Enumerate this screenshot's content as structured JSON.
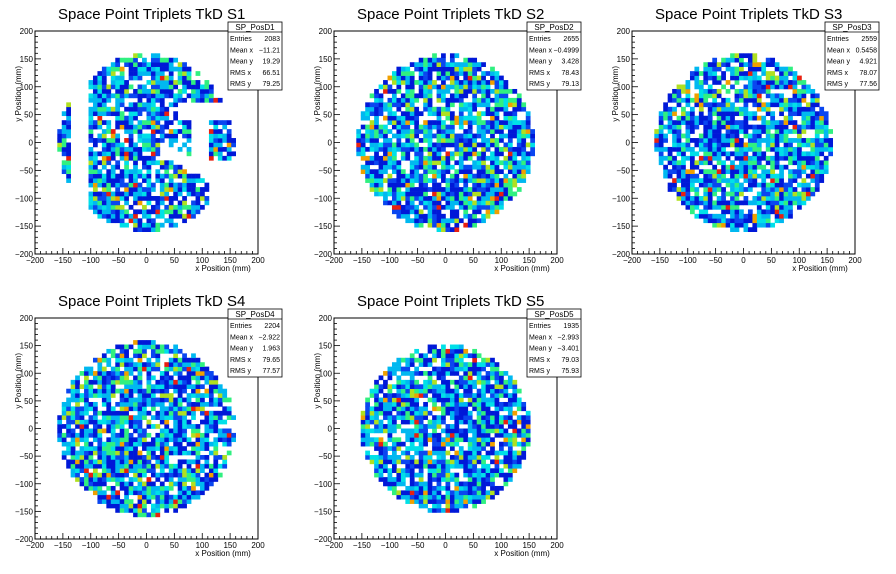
{
  "chart_data": [
    {
      "type": "heatmap",
      "title": "Space Point Triplets TkD S1",
      "xlabel": "x Position (mm)",
      "ylabel": "y Position (mm)",
      "xlim": [
        -200,
        200
      ],
      "ylim": [
        -200,
        200
      ],
      "xticks": [
        "−200",
        "−150",
        "−100",
        "−50",
        "0",
        "50",
        "100",
        "150",
        "200"
      ],
      "yticks": [
        "−200",
        "−150",
        "−100",
        "−50",
        "0",
        "50",
        "100",
        "150",
        "200"
      ],
      "grid": false,
      "pattern": "gapped",
      "stats": {
        "name": "SP_PosD1",
        "rows": [
          {
            "label": "Entries",
            "value": "2083"
          },
          {
            "label": "Mean x",
            "value": "−11.21"
          },
          {
            "label": "Mean y",
            "value": "19.29"
          },
          {
            "label": "RMS x",
            "value": "66.51"
          },
          {
            "label": "RMS y",
            "value": "79.25"
          }
        ]
      }
    },
    {
      "type": "heatmap",
      "title": "Space Point Triplets TkD S2",
      "xlabel": "x Position (mm)",
      "ylabel": "y Position (mm)",
      "xlim": [
        -200,
        200
      ],
      "ylim": [
        -200,
        200
      ],
      "xticks": [
        "−200",
        "−150",
        "−100",
        "−50",
        "0",
        "50",
        "100",
        "150",
        "200"
      ],
      "yticks": [
        "−200",
        "−150",
        "−100",
        "−50",
        "0",
        "50",
        "100",
        "150",
        "200"
      ],
      "grid": false,
      "pattern": "full",
      "stats": {
        "name": "SP_PosD2",
        "rows": [
          {
            "label": "Entries",
            "value": "2655"
          },
          {
            "label": "Mean x",
            "value": "−0.4999"
          },
          {
            "label": "Mean y",
            "value": "3.428"
          },
          {
            "label": "RMS x",
            "value": "78.43"
          },
          {
            "label": "RMS y",
            "value": "79.13"
          }
        ]
      }
    },
    {
      "type": "heatmap",
      "title": "Space Point Triplets TkD S3",
      "xlabel": "x Position (mm)",
      "ylabel": "y Position (mm)",
      "xlim": [
        -200,
        200
      ],
      "ylim": [
        -200,
        200
      ],
      "xticks": [
        "−200",
        "−150",
        "−100",
        "−50",
        "0",
        "50",
        "100",
        "150",
        "200"
      ],
      "yticks": [
        "−200",
        "−150",
        "−100",
        "−50",
        "0",
        "50",
        "100",
        "150",
        "200"
      ],
      "grid": false,
      "pattern": "full",
      "stats": {
        "name": "SP_PosD3",
        "rows": [
          {
            "label": "Entries",
            "value": "2559"
          },
          {
            "label": "Mean x",
            "value": "0.5458"
          },
          {
            "label": "Mean y",
            "value": "4.921"
          },
          {
            "label": "RMS x",
            "value": "78.07"
          },
          {
            "label": "RMS y",
            "value": "77.56"
          }
        ]
      }
    },
    {
      "type": "heatmap",
      "title": "Space Point Triplets TkD S4",
      "xlabel": "x Position (mm)",
      "ylabel": "y Position (mm)",
      "xlim": [
        -200,
        200
      ],
      "ylim": [
        -200,
        200
      ],
      "xticks": [
        "−200",
        "−150",
        "−100",
        "−50",
        "0",
        "50",
        "100",
        "150",
        "200"
      ],
      "yticks": [
        "−200",
        "−150",
        "−100",
        "−50",
        "0",
        "50",
        "100",
        "150",
        "200"
      ],
      "grid": false,
      "pattern": "full",
      "stats": {
        "name": "SP_PosD4",
        "rows": [
          {
            "label": "Entries",
            "value": "2204"
          },
          {
            "label": "Mean x",
            "value": "−2.922"
          },
          {
            "label": "Mean y",
            "value": "1.963"
          },
          {
            "label": "RMS x",
            "value": "79.65"
          },
          {
            "label": "RMS y",
            "value": "77.57"
          }
        ]
      }
    },
    {
      "type": "heatmap",
      "title": "Space Point Triplets TkD S5",
      "xlabel": "x Position (mm)",
      "ylabel": "y Position (mm)",
      "xlim": [
        -200,
        200
      ],
      "ylim": [
        -200,
        200
      ],
      "xticks": [
        "−200",
        "−150",
        "−100",
        "−50",
        "0",
        "50",
        "100",
        "150",
        "200"
      ],
      "yticks": [
        "−200",
        "−150",
        "−100",
        "−50",
        "0",
        "50",
        "100",
        "150",
        "200"
      ],
      "grid": false,
      "pattern": "full",
      "stats": {
        "name": "SP_PosD5",
        "rows": [
          {
            "label": "Entries",
            "value": "1935"
          },
          {
            "label": "Mean x",
            "value": "−2.993"
          },
          {
            "label": "Mean y",
            "value": "−3.401"
          },
          {
            "label": "RMS x",
            "value": "79.03"
          },
          {
            "label": "RMS y",
            "value": "75.93"
          }
        ]
      }
    }
  ],
  "palette": [
    "#0018d8",
    "#0a46f0",
    "#00b8f0",
    "#00e0e8",
    "#30f080",
    "#b0e020",
    "#f0a000",
    "#e82010"
  ],
  "palette_weights": [
    0.3,
    0.14,
    0.24,
    0.1,
    0.12,
    0.05,
    0.03,
    0.02
  ]
}
